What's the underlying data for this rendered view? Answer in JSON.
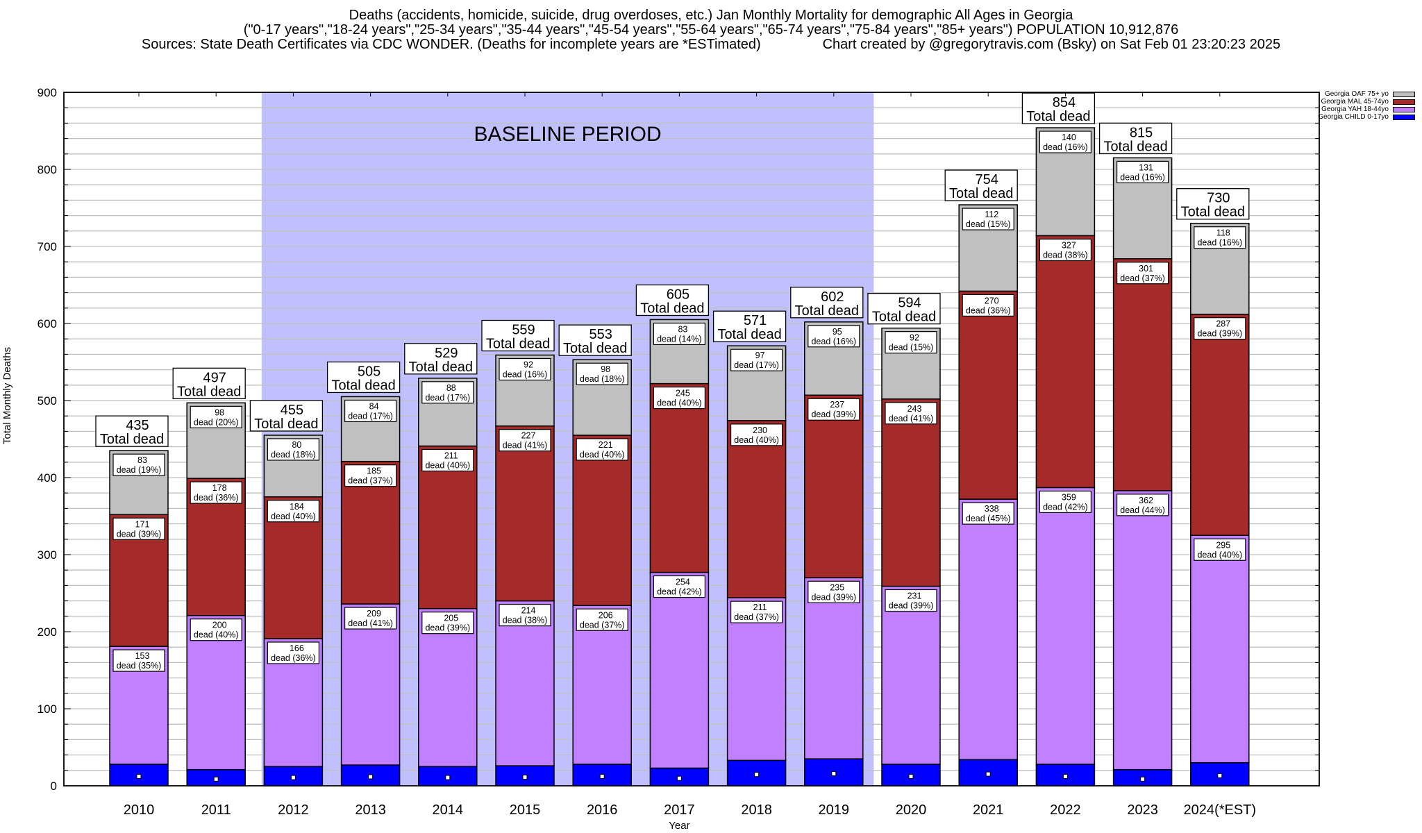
{
  "header": {
    "line1": "Deaths (accidents, homicide, suicide, drug overdoses, etc.) Jan Monthly Mortality for demographic All Ages in Georgia",
    "line2": "(\"0-17 years\",\"18-24 years\",\"25-34 years\",\"35-44 years\",\"45-54 years\",\"55-64 years\",\"65-74 years\",\"75-84 years\",\"85+ years\") POPULATION 10,912,876",
    "line3": "Sources: State Death Certificates via CDC WONDER. (Deaths for incomplete years are *ESTimated)                Chart created by @gregorytravis.com (Bsky) on Sat Feb 01 23:20:23 2025"
  },
  "chart_data": {
    "type": "bar",
    "stacked": true,
    "title": "Deaths (accidents, homicide, suicide, drug overdoses, etc.) Jan Monthly Mortality for demographic All Ages in Georgia",
    "xlabel": "Year",
    "ylabel": "Total Monthly Deaths",
    "ylim": [
      0,
      900
    ],
    "yticks": [
      0,
      100,
      200,
      300,
      400,
      500,
      600,
      700,
      800,
      900
    ],
    "minor_grid_step": 20,
    "grid": true,
    "legend_position": "top-right",
    "categories": [
      "2010",
      "2011",
      "2012",
      "2013",
      "2014",
      "2015",
      "2016",
      "2017",
      "2018",
      "2019",
      "2020",
      "2021",
      "2022",
      "2023",
      "2024(*EST)"
    ],
    "series": [
      {
        "name": "Georgia CHILD 0-17yo",
        "color": "#0000ff",
        "values": [
          28,
          21,
          25,
          27,
          25,
          26,
          28,
          23,
          33,
          35,
          28,
          34,
          28,
          21,
          30
        ],
        "labeled": false
      },
      {
        "name": "Georgia YAH 18-44yo",
        "color": "#c080ff",
        "values": [
          153,
          200,
          166,
          209,
          205,
          214,
          206,
          254,
          211,
          235,
          231,
          338,
          359,
          362,
          295
        ],
        "percent": [
          35,
          40,
          36,
          41,
          39,
          38,
          37,
          42,
          37,
          39,
          39,
          45,
          42,
          44,
          40
        ]
      },
      {
        "name": "Georgia MAL 45-74yo",
        "color": "#a52a2a",
        "values": [
          171,
          178,
          184,
          185,
          211,
          227,
          221,
          245,
          230,
          237,
          243,
          270,
          327,
          301,
          287
        ],
        "percent": [
          39,
          36,
          40,
          37,
          40,
          41,
          40,
          40,
          40,
          39,
          41,
          36,
          38,
          37,
          39
        ]
      },
      {
        "name": "Georgia OAF 75+ yo",
        "color": "#c0c0c0",
        "values": [
          83,
          98,
          80,
          84,
          88,
          92,
          98,
          83,
          97,
          95,
          92,
          112,
          140,
          131,
          118
        ],
        "percent": [
          19,
          20,
          18,
          17,
          17,
          16,
          18,
          14,
          17,
          16,
          15,
          15,
          16,
          16,
          16
        ]
      }
    ],
    "totals": [
      435,
      497,
      455,
      505,
      529,
      559,
      553,
      605,
      571,
      602,
      594,
      754,
      854,
      815,
      730
    ],
    "total_label_suffix": "Total dead",
    "segment_label_word": "dead",
    "legend_order": [
      "Georgia OAF 75+ yo",
      "Georgia MAL 45-74yo",
      "Georgia YAH 18-44yo",
      "Georgia CHILD 0-17yo"
    ],
    "annotation": {
      "text": "BASELINE PERIOD",
      "from_category": "2012",
      "to_category": "2019",
      "color": "#c0c0ff"
    }
  }
}
